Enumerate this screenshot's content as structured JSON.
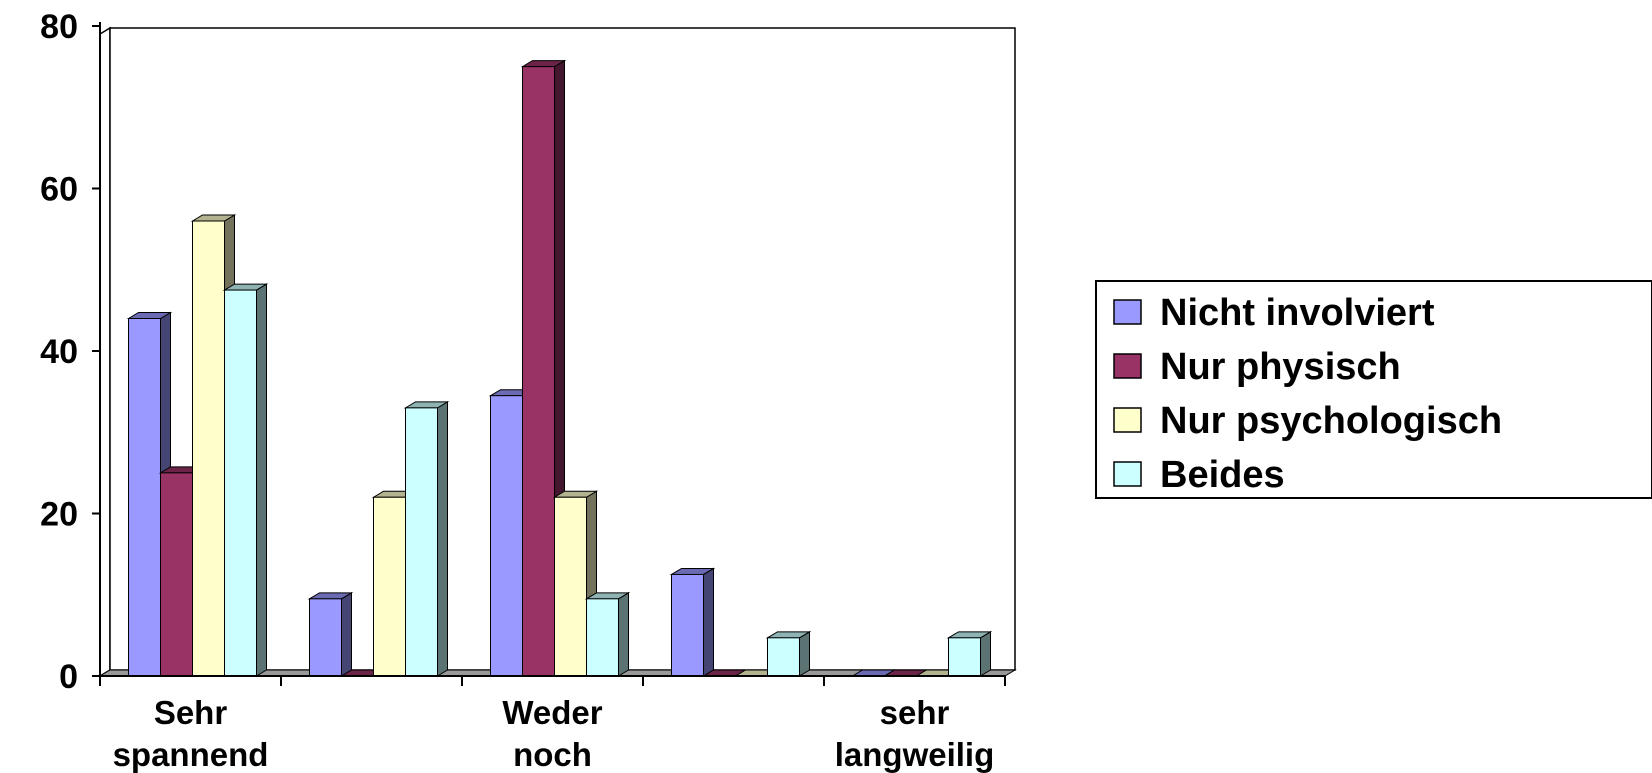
{
  "chart_data": {
    "type": "bar",
    "categories": [
      "Sehr spannend",
      "",
      "Weder noch",
      "",
      "sehr langweilig"
    ],
    "category_label_lines": [
      [
        "Sehr",
        "spannend"
      ],
      [],
      [
        "Weder",
        "noch"
      ],
      [],
      [
        "sehr",
        "langweilig"
      ]
    ],
    "series": [
      {
        "name": "Nicht involviert",
        "values": [
          44,
          9.5,
          34.5,
          12.5,
          0
        ],
        "color": "#9999ff"
      },
      {
        "name": "Nur physisch",
        "values": [
          25,
          0,
          75,
          0,
          0
        ],
        "color": "#993366"
      },
      {
        "name": "Nur psychologisch",
        "values": [
          56,
          22,
          22,
          0,
          0
        ],
        "color": "#ffffcc"
      },
      {
        "name": "Beides",
        "values": [
          47.5,
          33,
          9.5,
          4.7,
          4.7
        ],
        "color": "#ccffff"
      }
    ],
    "y_ticks": [
      "0",
      "20",
      "40",
      "60",
      "80"
    ],
    "ylim": [
      0,
      80
    ],
    "grid": false,
    "legend_position": "right",
    "style": "3d-clustered-column"
  }
}
